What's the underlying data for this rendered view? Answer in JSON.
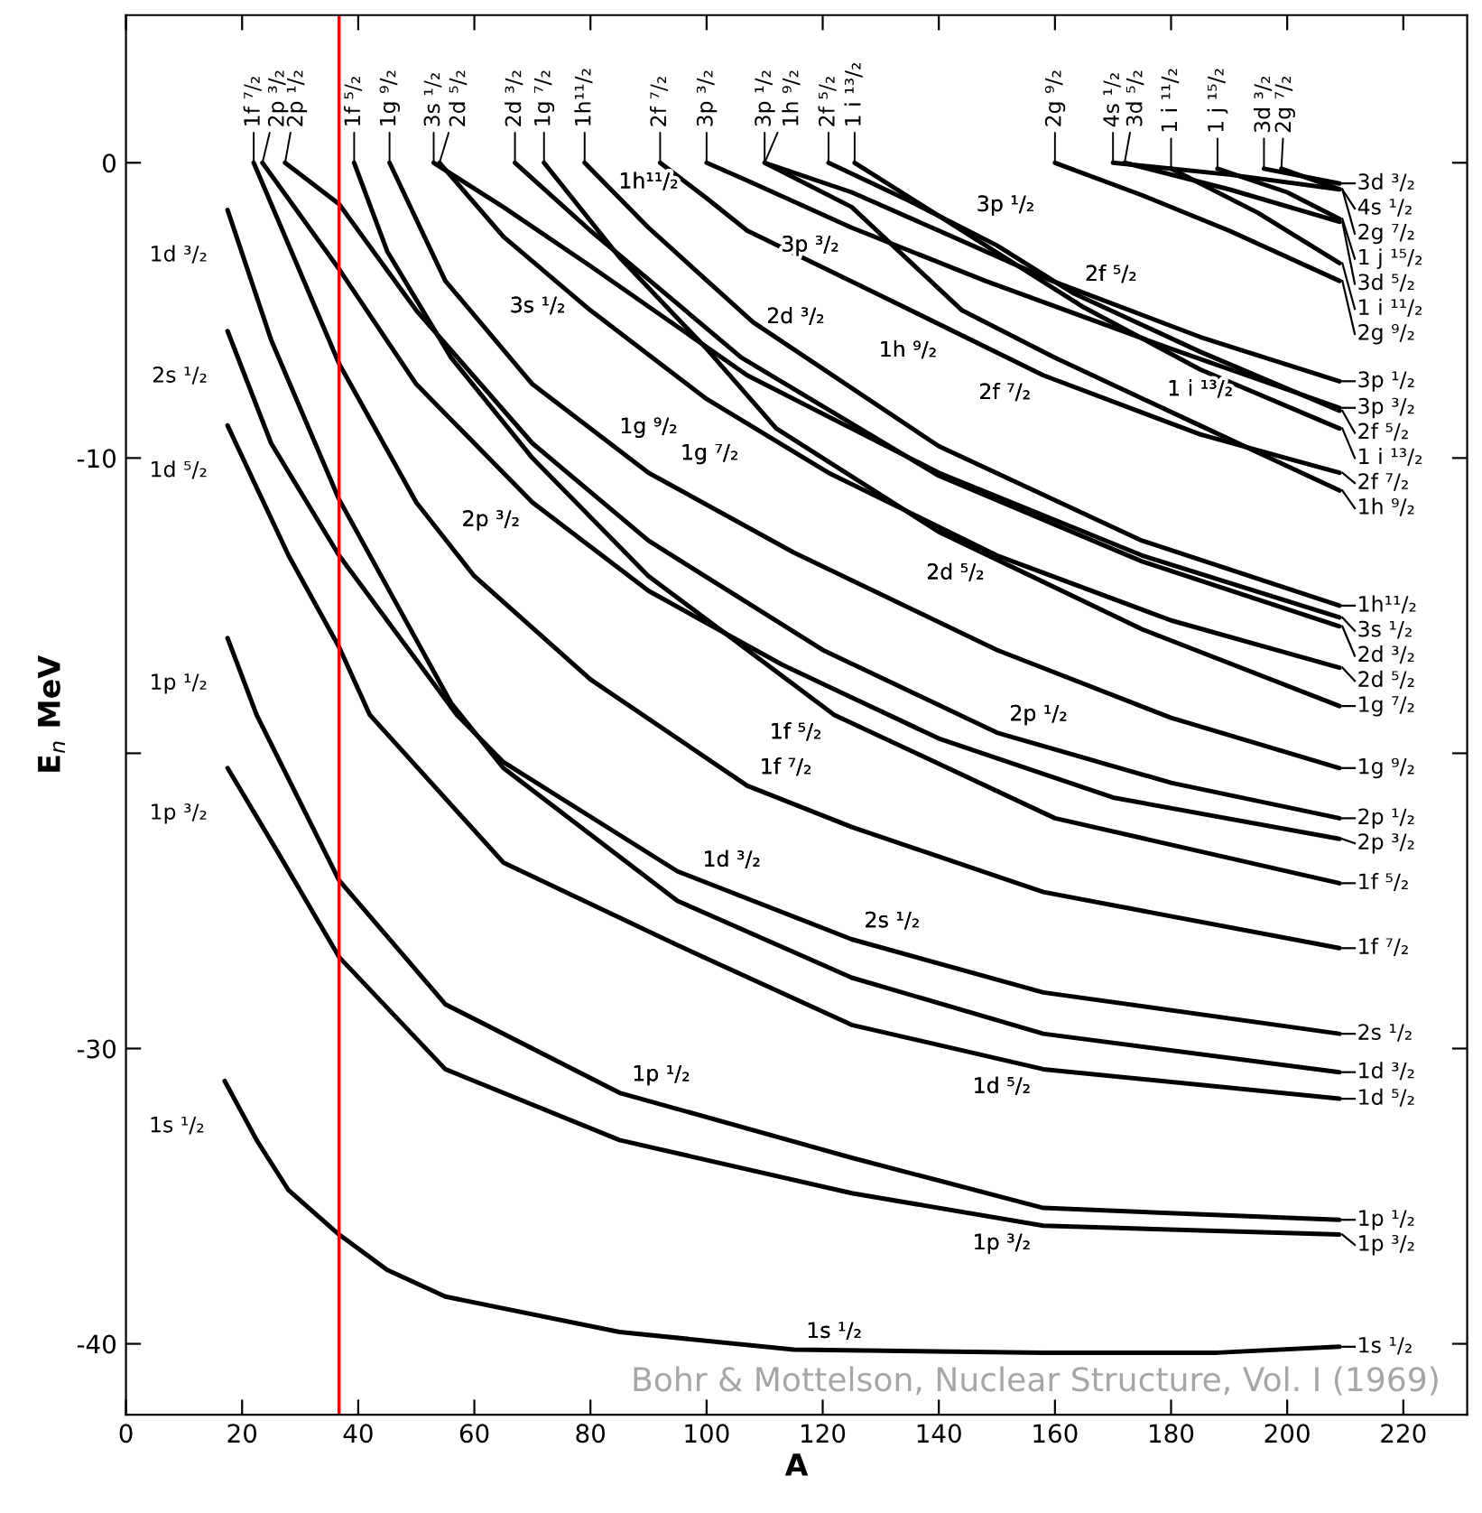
{
  "chart_data": {
    "type": "line",
    "xlabel": "A",
    "ylabel": "E$_{n}$ MeV",
    "xlim": [
      0,
      231
    ],
    "ylim": [
      -42.4,
      5
    ],
    "xticks": [
      0,
      20,
      40,
      60,
      80,
      100,
      120,
      140,
      160,
      180,
      200,
      220
    ],
    "yticks": [
      0,
      -10,
      {
        "value": -20,
        "label": null
      },
      -30,
      -40
    ],
    "series": [
      {
        "name": "1s ¹/₂",
        "color": "#000000",
        "x": [
          17,
          22.5,
          28,
          36.7,
          45,
          55,
          85,
          115,
          158,
          188,
          209
        ],
        "values": [
          -31.1,
          -33.1,
          -34.8,
          -36.3,
          -37.5,
          -38.4,
          -39.6,
          -40.2,
          -40.3,
          -40.3,
          -40.1
        ]
      },
      {
        "name": "1p ³/₂",
        "color": "#000000",
        "x": [
          17.5,
          26,
          36.7,
          55,
          85,
          125,
          158,
          209
        ],
        "values": [
          -20.5,
          -23.3,
          -26.9,
          -30.7,
          -33.1,
          -34.9,
          -36.0,
          -36.3
        ]
      },
      {
        "name": "1p ¹/₂",
        "color": "#000000",
        "x": [
          17.5,
          22.5,
          36.7,
          55,
          85,
          125,
          158,
          209
        ],
        "values": [
          -16.1,
          -18.7,
          -24.3,
          -28.5,
          -31.5,
          -33.7,
          -35.4,
          -35.8
        ]
      },
      {
        "name": "1d ⁵/₂",
        "color": "#000000",
        "x": [
          17.5,
          22.5,
          28,
          36.7,
          42,
          65,
          95,
          125,
          158,
          209
        ],
        "values": [
          -8.9,
          -11.0,
          -13.3,
          -16.4,
          -18.7,
          -23.7,
          -26.5,
          -29.2,
          -30.7,
          -31.7
        ]
      },
      {
        "name": "1d ³/₂",
        "color": "#000000",
        "x": [
          17.5,
          25,
          36.7,
          56,
          65,
          95,
          125,
          158,
          209
        ],
        "values": [
          -1.6,
          -6.0,
          -11.4,
          -18.3,
          -20.5,
          -25.0,
          -27.6,
          -29.5,
          -30.8
        ]
      },
      {
        "name": "2s ¹/₂",
        "color": "#000000",
        "x": [
          17.5,
          25,
          36.7,
          57,
          65,
          95,
          125,
          158,
          209
        ],
        "values": [
          -5.7,
          -9.5,
          -13.3,
          -18.7,
          -20.3,
          -24.0,
          -26.3,
          -28.1,
          -29.5
        ]
      },
      {
        "name": "1f ⁷/₂",
        "color": "#000000",
        "x": [
          22,
          36.7,
          50,
          60,
          80,
          107,
          125,
          158,
          209
        ],
        "values": [
          0,
          -6.8,
          -11.5,
          -14.0,
          -17.5,
          -21.1,
          -22.5,
          -24.7,
          -26.6
        ]
      },
      {
        "name": "1f ⁵/₂",
        "color": "#000000",
        "x": [
          39.3,
          45,
          56,
          70,
          90,
          122,
          160,
          209
        ],
        "values": [
          0,
          -3.0,
          -6.6,
          -10.0,
          -14.0,
          -18.7,
          -22.2,
          -24.4
        ]
      },
      {
        "name": "2p ³/₂",
        "color": "#000000",
        "x": [
          23.5,
          36.7,
          50,
          70,
          90,
          113,
          140,
          170,
          209
        ],
        "values": [
          0,
          -3.6,
          -7.5,
          -11.5,
          -14.5,
          -17.0,
          -19.5,
          -21.5,
          -22.9
        ]
      },
      {
        "name": "2p ¹/₂",
        "color": "#000000",
        "x": [
          27.4,
          36.7,
          50,
          70,
          90,
          120,
          150,
          180,
          209
        ],
        "values": [
          0,
          -1.4,
          -5.0,
          -9.5,
          -12.8,
          -16.5,
          -19.3,
          -21.0,
          -22.2
        ]
      },
      {
        "name": "1g ⁹/₂",
        "color": "#000000",
        "x": [
          45.4,
          55,
          70,
          90,
          115,
          150,
          180,
          209
        ],
        "values": [
          0,
          -4.0,
          -7.5,
          -10.5,
          -13.2,
          -16.5,
          -18.8,
          -20.5
        ]
      },
      {
        "name": "1g ⁷/₂",
        "color": "#000000",
        "x": [
          72,
          85,
          100,
          112,
          140,
          175,
          209
        ],
        "values": [
          0,
          -3.2,
          -6.3,
          -9.0,
          -12.5,
          -15.8,
          -18.4
        ]
      },
      {
        "name": "2d ⁵/₂",
        "color": "#000000",
        "x": [
          54,
          65,
          80,
          100,
          121,
          150,
          180,
          209
        ],
        "values": [
          0,
          -2.5,
          -5.0,
          -8.0,
          -10.5,
          -13.3,
          -15.5,
          -17.1
        ]
      },
      {
        "name": "2d ³/₂",
        "color": "#000000",
        "x": [
          67,
          80,
          106,
          140,
          175,
          209
        ],
        "values": [
          0,
          -2.3,
          -6.6,
          -10.6,
          -13.5,
          -15.7
        ]
      },
      {
        "name": "3s ¹/₂",
        "color": "#000000",
        "x": [
          53,
          65,
          80,
          107,
          140,
          175,
          209
        ],
        "values": [
          0,
          -1.5,
          -3.5,
          -7.2,
          -10.5,
          -13.3,
          -15.4
        ]
      },
      {
        "name": "1h¹¹/₂",
        "color": "#000000",
        "x": [
          79,
          90,
          108,
          140,
          175,
          209
        ],
        "values": [
          0,
          -2.2,
          -5.4,
          -9.6,
          -12.8,
          -15.0
        ]
      },
      {
        "name": "2f ⁷/₂",
        "color": "#000000",
        "x": [
          92,
          100,
          107,
          130,
          158,
          185,
          209
        ],
        "values": [
          0,
          -1.2,
          -2.3,
          -4.5,
          -7.2,
          -9.2,
          -10.5
        ]
      },
      {
        "name": "1h ⁹/₂",
        "color": "#000000",
        "x": [
          110,
          125,
          144,
          160,
          185,
          209
        ],
        "values": [
          0,
          -1.5,
          -5.0,
          -6.6,
          -8.9,
          -11.1
        ]
      },
      {
        "name": "3p ³/₂",
        "color": "#000000",
        "x": [
          100,
          107,
          125,
          148,
          180,
          209
        ],
        "values": [
          0,
          -0.6,
          -2.2,
          -4.0,
          -6.3,
          -8.3
        ]
      },
      {
        "name": "3p ¹/₂",
        "color": "#000000",
        "x": [
          110,
          125,
          140,
          159.5,
          185,
          209
        ],
        "values": [
          0,
          -1.0,
          -2.3,
          -4.0,
          -5.9,
          -7.4
        ]
      },
      {
        "name": "2f ⁵/₂",
        "color": "#000000",
        "x": [
          121,
          135,
          150,
          163,
          185,
          209
        ],
        "values": [
          0,
          -1.3,
          -2.8,
          -4.4,
          -6.4,
          -8.4
        ]
      },
      {
        "name": "1 i ¹³/₂",
        "color": "#000000",
        "x": [
          125.5,
          140,
          165,
          185,
          209
        ],
        "values": [
          0,
          -1.8,
          -4.9,
          -7.0,
          -9.0
        ]
      },
      {
        "name": "2g ⁹/₂",
        "color": "#000000",
        "x": [
          160,
          175,
          190,
          209
        ],
        "values": [
          0,
          -1.1,
          -2.3,
          -4.0
        ]
      },
      {
        "name": "1 i ¹¹/₂",
        "color": "#000000",
        "x": [
          180,
          195,
          209
        ],
        "values": [
          -0.2,
          -1.7,
          -3.4
        ]
      },
      {
        "name": "3d ⁵/₂",
        "color": "#000000",
        "x": [
          172,
          190,
          209
        ],
        "values": [
          0,
          -0.9,
          -2.0
        ]
      },
      {
        "name": "1 j ¹⁵/₂",
        "color": "#000000",
        "x": [
          188,
          200,
          209
        ],
        "values": [
          -0.2,
          -1.0,
          -1.9
        ]
      },
      {
        "name": "4s ¹/₂",
        "color": "#000000",
        "x": [
          170,
          190,
          209
        ],
        "values": [
          0,
          -0.4,
          -0.9
        ]
      },
      {
        "name": "2g ⁷/₂",
        "color": "#000000",
        "x": [
          199,
          209
        ],
        "values": [
          -0.2,
          -0.9
        ]
      },
      {
        "name": "3d ³/₂",
        "color": "#000000",
        "x": [
          196,
          209
        ],
        "values": [
          -0.2,
          -0.7
        ]
      }
    ],
    "ref_lines": [
      {
        "axis": "x",
        "value": 36.7,
        "color": "#ff0000"
      }
    ],
    "legend": "right",
    "annotations": [
      {
        "text": "1f ⁷/₂",
        "x": 22,
        "y": 0
      },
      {
        "text": "2p ³/₂",
        "x": 23.5,
        "y": 0
      },
      {
        "text": "2p ¹/₂",
        "x": 27.4,
        "y": 0
      },
      {
        "text": "1f ⁵/₂",
        "x": 39.3,
        "y": 0
      },
      {
        "text": "1g ⁹/₂",
        "x": 45.4,
        "y": 0
      },
      {
        "text": "3s ¹/₂",
        "x": 53,
        "y": 0
      },
      {
        "text": "2d ⁵/₂",
        "x": 54,
        "y": 0
      },
      {
        "text": "2d ³/₂",
        "x": 67,
        "y": 0
      },
      {
        "text": "1g ⁷/₂",
        "x": 72,
        "y": 0
      },
      {
        "text": "1h¹¹/₂",
        "x": 79,
        "y": 0
      },
      {
        "text": "2f ⁷/₂",
        "x": 92,
        "y": 0
      },
      {
        "text": "3p ³/₂",
        "x": 100,
        "y": 0
      },
      {
        "text": "3p ¹/₂",
        "x": 110,
        "y": 0
      },
      {
        "text": "1h ⁹/₂",
        "x": 110,
        "y": 0
      },
      {
        "text": "2f ⁵/₂",
        "x": 121,
        "y": 0
      },
      {
        "text": "1 i ¹³/₂",
        "x": 125.5,
        "y": 0
      },
      {
        "text": "2g ⁹/₂",
        "x": 160,
        "y": 0
      },
      {
        "text": "4s ¹/₂",
        "x": 170,
        "y": 0
      },
      {
        "text": "3d ⁵/₂",
        "x": 172,
        "y": 0
      },
      {
        "text": "1 i ¹¹/₂",
        "x": 180,
        "y": -0.2
      },
      {
        "text": "1 j ¹⁵/₂",
        "x": 188,
        "y": -0.2
      },
      {
        "text": "3d ³/₂",
        "x": 196,
        "y": -0.2
      },
      {
        "text": "2g ⁷/₂",
        "x": 199,
        "y": -0.2
      },
      {
        "text": "1d ³/₂",
        "x": 17.5,
        "y": -1.6
      },
      {
        "text": "2s ¹/₂",
        "x": 17.5,
        "y": -5.7
      },
      {
        "text": "1d ⁵/₂",
        "x": 17.5,
        "y": -8.9
      },
      {
        "text": "1p ¹/₂",
        "x": 17.5,
        "y": -16.1
      },
      {
        "text": "1p ³/₂",
        "x": 17.5,
        "y": -20.5
      },
      {
        "text": "1s ¹/₂",
        "x": 17,
        "y": -31.1
      },
      {
        "text": "1h¹¹/₂",
        "x": 90,
        "y": -2.2
      },
      {
        "text": "2d ³/₂",
        "x": 106,
        "y": -6.6
      },
      {
        "text": "3s ¹/₂",
        "x": 80,
        "y": -3.5
      },
      {
        "text": "1g ⁷/₂",
        "x": 112,
        "y": -9.0
      },
      {
        "text": "2d ⁵/₂",
        "x": 150,
        "y": -13.3
      },
      {
        "text": "1g ⁹/₂",
        "x": 90,
        "y": -10.5
      },
      {
        "text": "2p ¹/₂",
        "x": 150,
        "y": -19.3
      },
      {
        "text": "2p ³/₂",
        "x": 70,
        "y": -11.5
      },
      {
        "text": "1f ⁵/₂",
        "x": 122,
        "y": -18.7
      },
      {
        "text": "1f ⁷/₂",
        "x": 107,
        "y": -21.1
      },
      {
        "text": "2s ¹/₂",
        "x": 125,
        "y": -26.3
      },
      {
        "text": "1d ³/₂",
        "x": 95,
        "y": -25.0
      },
      {
        "text": "1d ⁵/₂",
        "x": 158,
        "y": -30.7
      },
      {
        "text": "1p ¹/₂",
        "x": 85,
        "y": -31.5
      },
      {
        "text": "1p ³/₂",
        "x": 158,
        "y": -36.0
      },
      {
        "text": "1s ¹/₂",
        "x": 115,
        "y": -40.2
      },
      {
        "text": "3p ³/₂",
        "x": 125,
        "y": -2.2
      },
      {
        "text": "3p ¹/₂",
        "x": 140,
        "y": -2.3
      },
      {
        "text": "2f ⁵/₂",
        "x": 163,
        "y": -4.4
      },
      {
        "text": "1 i ¹³/₂",
        "x": 185,
        "y": -7.0
      },
      {
        "text": "1h ⁹/₂",
        "x": 144,
        "y": -5.0
      },
      {
        "text": "2f ⁷/₂",
        "x": 158,
        "y": -7.2
      },
      "Bohr & Mottelson, Nuclear Structure, Vol. I (1969)"
    ]
  }
}
